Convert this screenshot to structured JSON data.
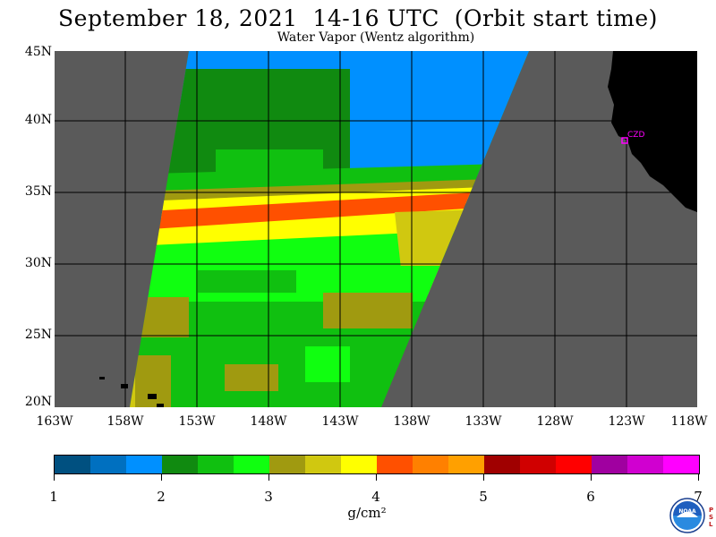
{
  "title": "September 18, 2021  14-16 UTC  (Orbit start time)",
  "subtitle": "Water Vapor (Wentz algorithm)",
  "map": {
    "lat_labels": [
      "45N",
      "40N",
      "35N",
      "30N",
      "25N",
      "20N"
    ],
    "lon_labels": [
      "163W",
      "158W",
      "153W",
      "148W",
      "143W",
      "138W",
      "133W",
      "128W",
      "123W",
      "118W"
    ],
    "station_label": "CZD",
    "station_color": "#ff00ff",
    "land_color": "#000000",
    "no_data_color": "#5a5a5a"
  },
  "colorbar": {
    "colors": [
      "#005080",
      "#0070c0",
      "#0090ff",
      "#108a10",
      "#10c010",
      "#10ff10",
      "#a09a10",
      "#d0c810",
      "#ffff00",
      "#ff5000",
      "#ff8000",
      "#ffa000",
      "#a00000",
      "#d00000",
      "#ff0000",
      "#a000a0",
      "#d000d0",
      "#ff00ff"
    ],
    "tick_labels": [
      "1",
      "2",
      "3",
      "4",
      "5",
      "6",
      "7"
    ],
    "unit": "g/cm²"
  },
  "logo": {
    "icon": "noaa-logo-icon",
    "side_text": "PSL"
  }
}
